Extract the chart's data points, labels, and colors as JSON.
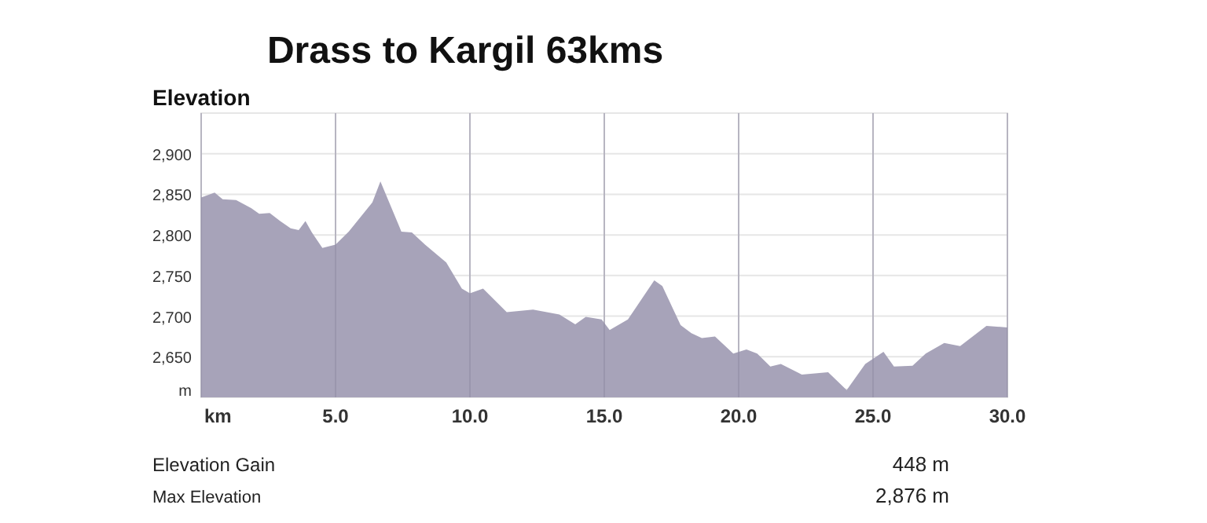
{
  "chart_data": {
    "type": "area",
    "title": "Drass to Kargil 63kms",
    "ylabel": "Elevation",
    "x": [
      0,
      0.5,
      0.8,
      1.3,
      1.86,
      2.16,
      2.55,
      2.94,
      3.33,
      3.63,
      3.88,
      4.12,
      4.51,
      5.0,
      5.49,
      6.37,
      6.67,
      7.45,
      7.84,
      8.33,
      9.12,
      9.7,
      10.0,
      10.49,
      11.37,
      12.35,
      13.33,
      13.92,
      14.31,
      14.9,
      15.2,
      15.88,
      16.86,
      17.16,
      17.84,
      18.24,
      18.63,
      19.12,
      19.8,
      20.29,
      20.69,
      21.18,
      21.57,
      22.35,
      23.33,
      24.02,
      24.71,
      25.39,
      25.78,
      26.47,
      26.96,
      27.65,
      28.24,
      29.22,
      30.0
    ],
    "series": [
      {
        "color": "#a7a3b9",
        "values": [
          2846,
          2852,
          2844,
          2843,
          2833,
          2826,
          2827,
          2817,
          2808,
          2806,
          2817,
          2803,
          2784,
          2788,
          2804,
          2840,
          2866,
          2804,
          2803,
          2788,
          2766,
          2734,
          2728,
          2734,
          2705,
          2708,
          2702,
          2690,
          2699,
          2696,
          2683,
          2696,
          2744,
          2737,
          2689,
          2679,
          2673,
          2675,
          2654,
          2659,
          2654,
          2638,
          2641,
          2628,
          2631,
          2609,
          2641,
          2656,
          2638,
          2639,
          2654,
          2667,
          2663,
          2688,
          2686
        ]
      }
    ],
    "xlim": [
      0,
      30
    ],
    "xticks": [
      {
        "value": 0,
        "label": "km"
      },
      {
        "value": 5,
        "label": "5.0"
      },
      {
        "value": 10,
        "label": "10.0"
      },
      {
        "value": 15,
        "label": "15.0"
      },
      {
        "value": 20,
        "label": "20.0"
      },
      {
        "value": 25,
        "label": "25.0"
      },
      {
        "value": 30,
        "label": "30.0"
      }
    ],
    "ylim": [
      2600,
      2950
    ],
    "yticks": [
      {
        "value": 2610,
        "label": "m"
      },
      {
        "value": 2650,
        "label": "2,650"
      },
      {
        "value": 2700,
        "label": "2,700"
      },
      {
        "value": 2750,
        "label": "2,750"
      },
      {
        "value": 2800,
        "label": "2,800"
      },
      {
        "value": 2850,
        "label": "2,850"
      },
      {
        "value": 2900,
        "label": "2,900"
      }
    ],
    "grid": true,
    "annotations": [
      "Elevation Gain",
      "448 m",
      "Max Elevation",
      "2,876 m"
    ]
  }
}
